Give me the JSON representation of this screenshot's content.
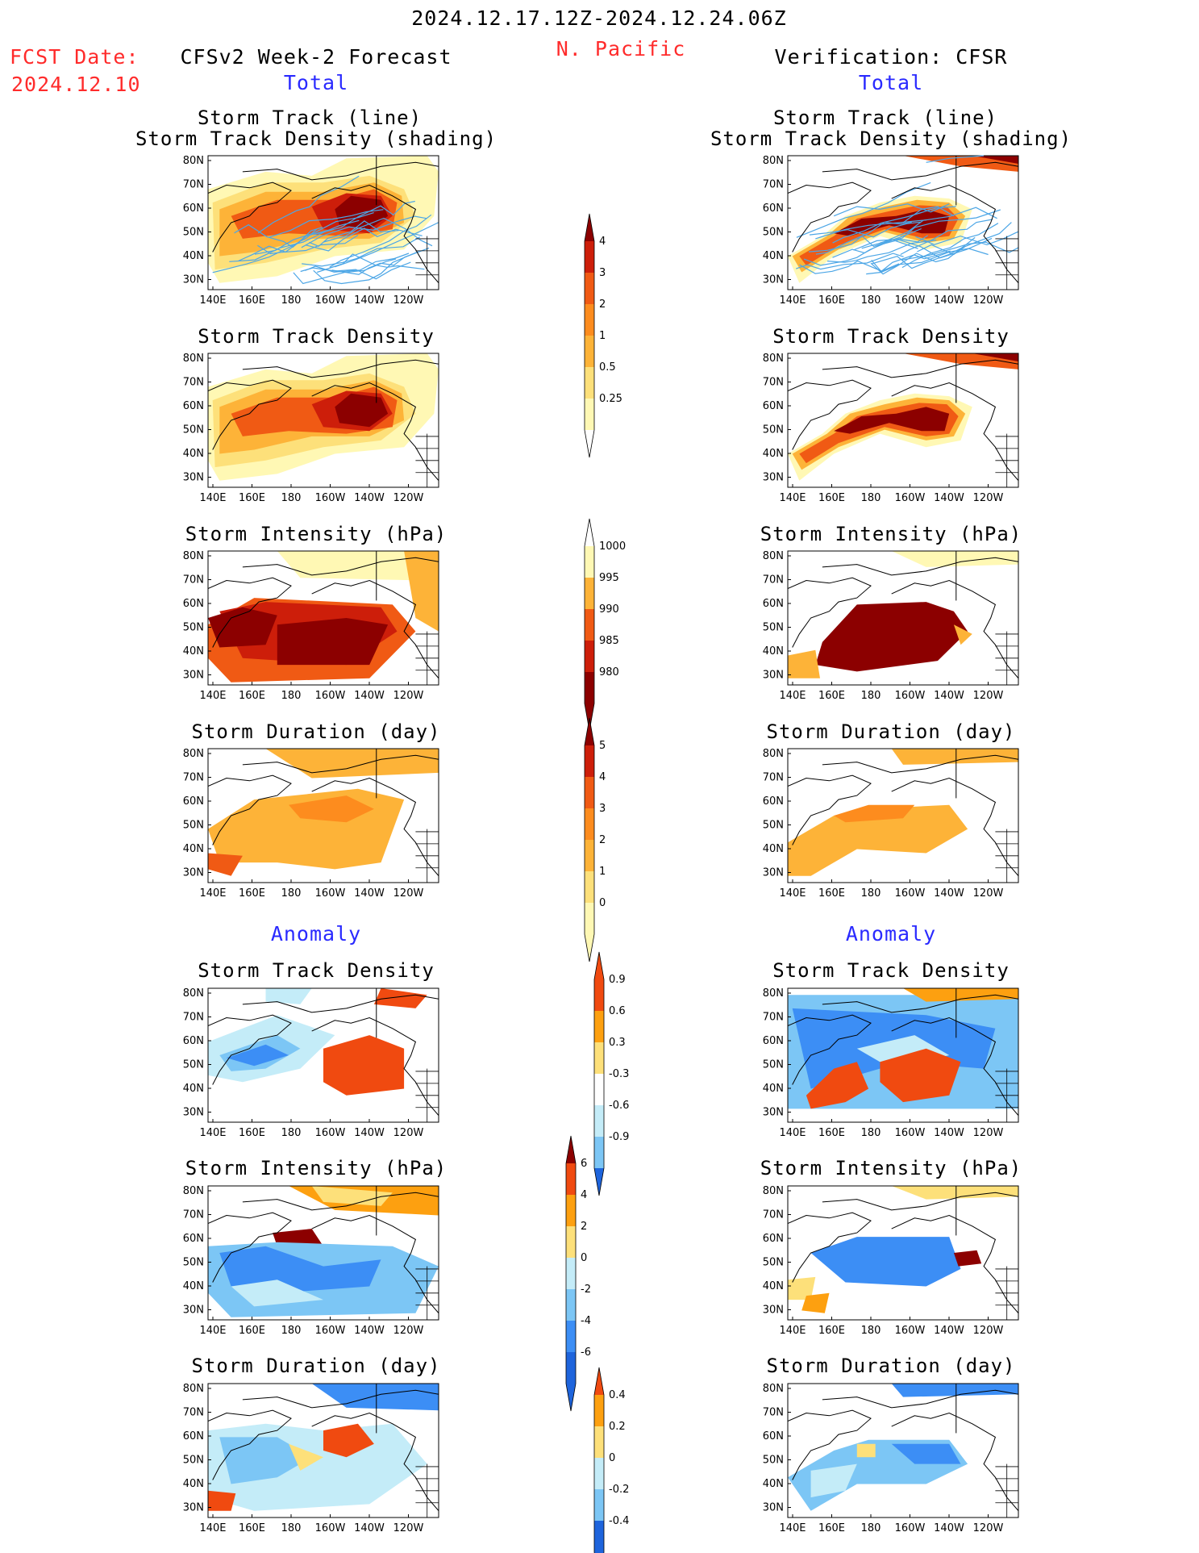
{
  "header": {
    "period": "2024.12.17.12Z-2024.12.24.06Z",
    "region": "N. Pacific",
    "fcst_label": "FCST Date:",
    "fcst_date": "2024.12.10",
    "left_title": "CFSv2 Week-2 Forecast",
    "right_title": "Verification: CFSR",
    "total_left": "Total",
    "total_right": "Total",
    "anomaly_left": "Anomaly",
    "anomaly_right": "Anomaly"
  },
  "panel_titles": {
    "track_line": "Storm Track (line)",
    "track_density_shading": "Storm Track Density (shading)",
    "density": "Storm Track Density",
    "intensity": "Storm Intensity (hPa)",
    "duration": "Storm Duration (day)"
  },
  "axes": {
    "lat_labels": [
      "80N",
      "70N",
      "60N",
      "50N",
      "40N",
      "30N"
    ],
    "lon_labels": [
      "140E",
      "160E",
      "180",
      "160W",
      "140W",
      "120W"
    ]
  },
  "colorbars": {
    "density_total": [
      "4",
      "3",
      "2",
      "1",
      "0.5",
      "0.25"
    ],
    "intensity_total": [
      "1000",
      "995",
      "990",
      "985",
      "980"
    ],
    "duration_total": [
      "5",
      "4",
      "3",
      "2",
      "1",
      "0"
    ],
    "density_anom": [
      "0.9",
      "0.6",
      "0.3",
      "-0.3",
      "-0.6",
      "-0.9"
    ],
    "intensity_anom": [
      "6",
      "4",
      "2",
      "0",
      "-2",
      "-4",
      "-6"
    ],
    "duration_anom": [
      "0.4",
      "0.2",
      "0",
      "-0.2",
      "-0.4"
    ]
  },
  "palette": {
    "t1": "#fff8b4",
    "t2": "#fde07a",
    "t3": "#fdb338",
    "t4": "#fd8c1e",
    "t5": "#f05a14",
    "t6": "#cd1e0a",
    "t7": "#8c0000",
    "ap1": "#fde07a",
    "ap2": "#fda010",
    "ap3": "#f04a10",
    "an1": "#c4ecf8",
    "an2": "#7cc6f5",
    "an3": "#3c8ef5",
    "an4": "#1e64dc",
    "track": "#4ca6e6"
  }
}
